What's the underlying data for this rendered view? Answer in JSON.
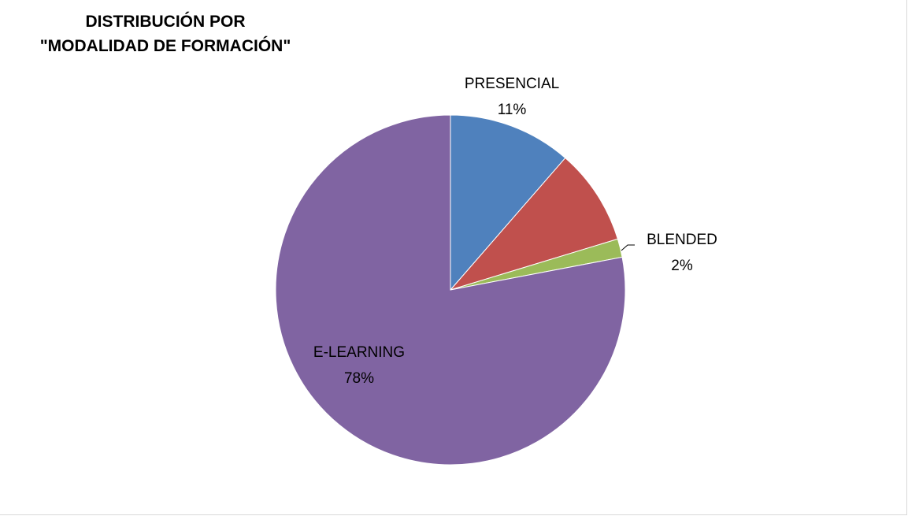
{
  "chart_data": {
    "type": "pie",
    "title_line1": "DISTRIBUCIÓN POR",
    "title_line2": "\"MODALIDAD DE FORMACIÓN\"",
    "slices": [
      {
        "name": "PRESENCIAL",
        "label_value": "11%",
        "value": 11.4,
        "color": "#4f81bd",
        "show_label": true
      },
      {
        "name": "",
        "label_value": "",
        "value": 8.9,
        "color": "#c0504d",
        "show_label": false
      },
      {
        "name": "BLENDED",
        "label_value": "2%",
        "value": 1.7,
        "color": "#9bbb59",
        "show_label": true
      },
      {
        "name": "E-LEARNING",
        "label_value": "78%",
        "value": 78.0,
        "color": "#8064a2",
        "show_label": true
      }
    ]
  }
}
